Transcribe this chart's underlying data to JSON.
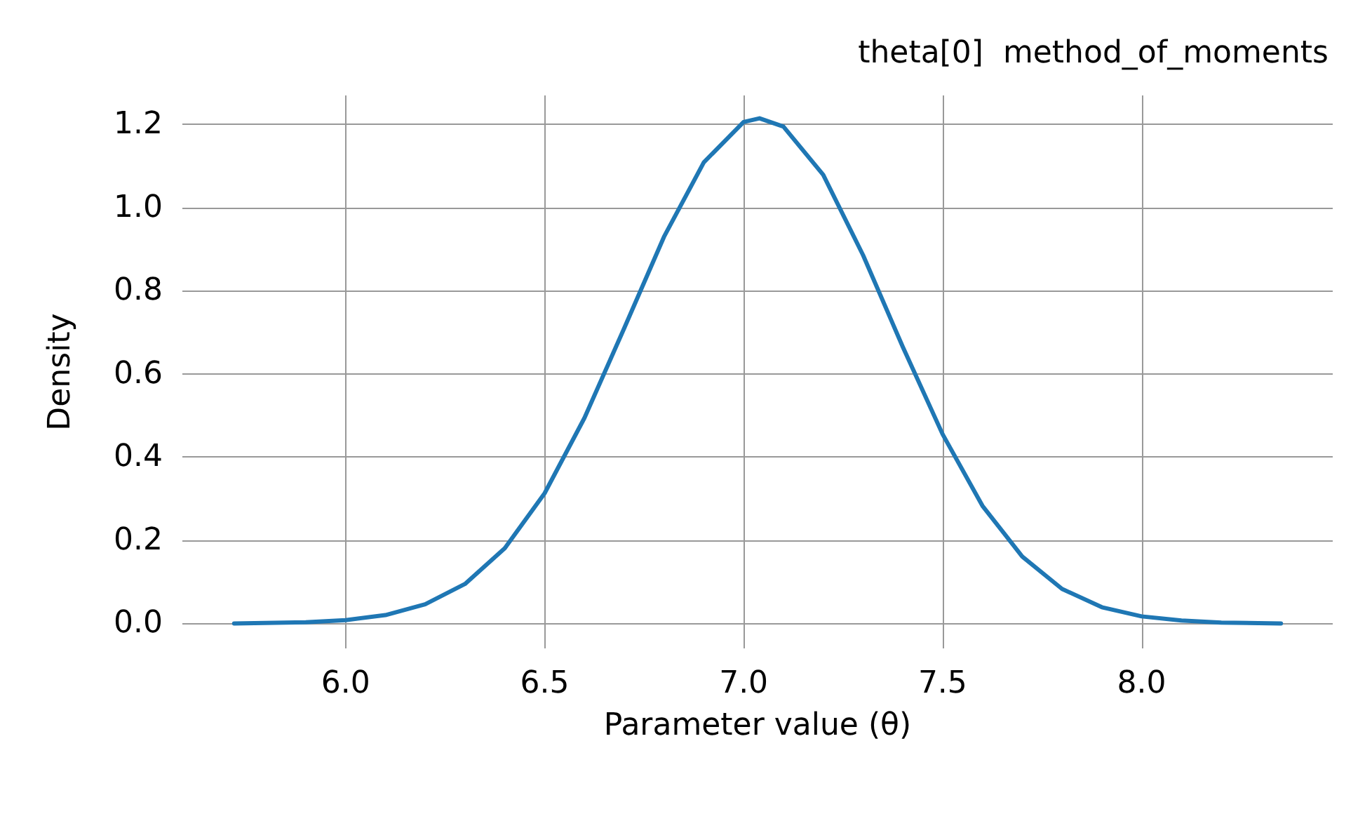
{
  "chart_data": {
    "type": "line",
    "title": "theta[0]  method_of_moments",
    "xlabel": "Parameter value (θ)",
    "ylabel": "Density",
    "x": [
      5.72,
      5.9,
      6.0,
      6.1,
      6.2,
      6.3,
      6.4,
      6.5,
      6.6,
      6.7,
      6.8,
      6.9,
      7.0,
      7.04,
      7.1,
      7.2,
      7.3,
      7.4,
      7.5,
      7.6,
      7.7,
      7.8,
      7.9,
      8.0,
      8.1,
      8.2,
      8.35
    ],
    "series": [
      {
        "color": "#1f77b4",
        "values": [
          0.0,
          0.003,
          0.008,
          0.02,
          0.046,
          0.095,
          0.181,
          0.313,
          0.494,
          0.71,
          0.93,
          1.109,
          1.206,
          1.215,
          1.195,
          1.079,
          0.886,
          0.665,
          0.455,
          0.283,
          0.161,
          0.083,
          0.039,
          0.017,
          0.007,
          0.002,
          0.0
        ]
      }
    ],
    "xlim": [
      5.59,
      8.48
    ],
    "ylim": [
      -0.06,
      1.27
    ],
    "xticks": [
      {
        "value": 6,
        "label": "6.0"
      },
      {
        "value": 6.5,
        "label": "6.5"
      },
      {
        "value": 7,
        "label": "7.0"
      },
      {
        "value": 7.5,
        "label": "7.5"
      },
      {
        "value": 8,
        "label": "8.0"
      }
    ],
    "yticks": [
      {
        "value": 0,
        "label": "0.0"
      },
      {
        "value": 0.2,
        "label": "0.2"
      },
      {
        "value": 0.4,
        "label": "0.4"
      },
      {
        "value": 0.6,
        "label": "0.6"
      },
      {
        "value": 0.8,
        "label": "0.8"
      },
      {
        "value": 1,
        "label": "1.0"
      },
      {
        "value": 1.2,
        "label": "1.2"
      }
    ],
    "grid": true,
    "marker": "none",
    "line_style": "solid"
  }
}
